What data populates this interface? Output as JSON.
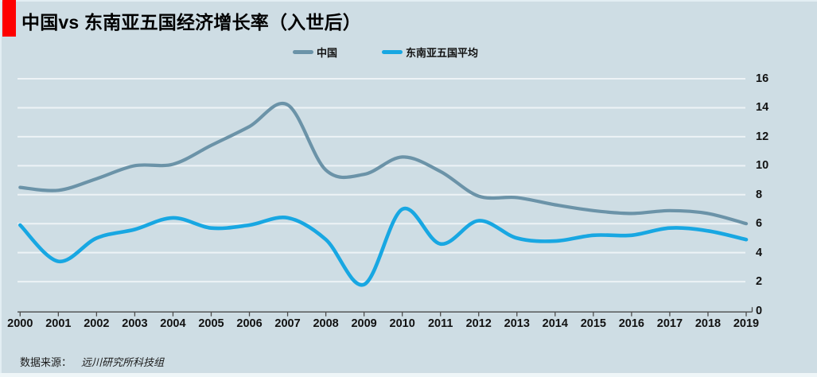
{
  "title": {
    "text": "中国vs 东南亚五国经济增长率（入世后）"
  },
  "legend": [
    {
      "label": "中国",
      "slug": "china",
      "color": "#6b93a8"
    },
    {
      "label": "东南亚五国平均",
      "slug": "sea-average",
      "color": "#18a7e2"
    }
  ],
  "footer": {
    "label": "数据来源：",
    "source": "远川研究所科技组"
  },
  "colors": {
    "background": "#cedde4",
    "accent_bar": "#fe0000",
    "grid": "#edf3f6",
    "axis": "#4a4a4a",
    "text": "#111111",
    "china_line": "#6b93a8",
    "sea_line": "#18a7e2"
  },
  "chart_data": {
    "type": "line",
    "smooth": true,
    "grid": "horizontal",
    "legend_position": "top-center",
    "title": "中国vs 东南亚五国经济增长率（入世后）",
    "xlabel": "",
    "ylabel": "",
    "x": [
      "2000",
      "2001",
      "2002",
      "2003",
      "2004",
      "2005",
      "2006",
      "2007",
      "2008",
      "2009",
      "2010",
      "2011",
      "2012",
      "2013",
      "2014",
      "2015",
      "2016",
      "2017",
      "2018",
      "2019"
    ],
    "ylim": [
      0,
      16
    ],
    "yticks": [
      0,
      2,
      4,
      6,
      8,
      10,
      12,
      14,
      16
    ],
    "series": [
      {
        "name": "中国",
        "slug": "china",
        "color": "#6b93a8",
        "width": 4.2,
        "values": [
          8.5,
          8.3,
          9.1,
          10.0,
          10.1,
          11.4,
          12.7,
          14.2,
          9.7,
          9.4,
          10.6,
          9.6,
          7.9,
          7.8,
          7.3,
          6.9,
          6.7,
          6.9,
          6.7,
          6.0
        ]
      },
      {
        "name": "东南亚五国平均",
        "slug": "sea-average",
        "color": "#18a7e2",
        "width": 4.6,
        "values": [
          5.9,
          3.4,
          5.0,
          5.6,
          6.4,
          5.7,
          5.9,
          6.4,
          4.9,
          1.8,
          7.0,
          4.6,
          6.2,
          5.0,
          4.8,
          5.2,
          5.2,
          5.7,
          5.5,
          4.9
        ]
      }
    ]
  }
}
